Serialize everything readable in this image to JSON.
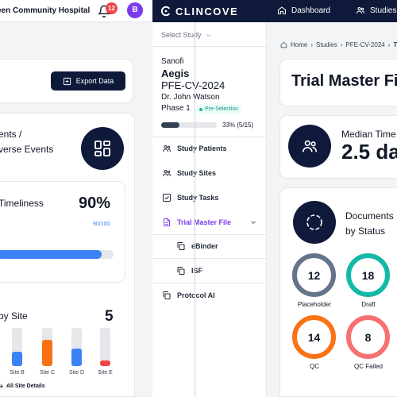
{
  "header": {
    "hospital": "een Community Hospital",
    "notification_count": "12",
    "avatar_initial": "B",
    "brand": "CLINCOVE",
    "nav": [
      "Dashboard",
      "Studies"
    ]
  },
  "left": {
    "export_label": "Export Data",
    "events_line1": "ents /",
    "events_line2": "verse Events",
    "timeliness_label": "Timeliness",
    "timeliness_value": "90%",
    "timeliness_sub": "90/100",
    "timeliness_fraction": 0.9,
    "by_site_label": "by Site",
    "by_site_count": "5",
    "sites": [
      {
        "name": "Site B",
        "fill": 0.38,
        "color": "#3b82f6"
      },
      {
        "name": "Site C",
        "fill": 0.68,
        "color": "#f97316"
      },
      {
        "name": "Site D",
        "fill": 0.45,
        "color": "#3b82f6"
      },
      {
        "name": "Site E",
        "fill": 0.15,
        "color": "#ef4444"
      }
    ],
    "all_site_details": "All Site Details"
  },
  "sidebar": {
    "select_study": "Select Study",
    "sponsor": "Sanofi",
    "study_name": "Aegis",
    "study_code": "PFE-CV-2024",
    "pi": "Dr. John Watson",
    "phase": "Phase 1",
    "phase_badge": "Pre-Selection",
    "progress_text": "33% (5/15)",
    "progress_fraction": 0.33,
    "items": [
      {
        "label": "Study Patients"
      },
      {
        "label": "Study Sites"
      },
      {
        "label": "Study Tasks"
      },
      {
        "label": "Trial Master File"
      },
      {
        "label": "eBinder"
      },
      {
        "label": "ISF"
      },
      {
        "label": "Protocol AI"
      }
    ]
  },
  "right": {
    "breadcrumb": [
      "Home",
      "Studies",
      "PFE-CV-2024",
      "Tr"
    ],
    "page_title": "Trial Master Fil",
    "median_label": "Median Time",
    "median_value": "2.5 da",
    "docs_label_line1": "Documents",
    "docs_label_line2": "by Status",
    "statuses": [
      {
        "label": "Placeholder",
        "value": "12",
        "color": "#64748b"
      },
      {
        "label": "Draft",
        "value": "18",
        "color": "#14b8a6"
      },
      {
        "label": "QC",
        "value": "14",
        "color": "#f97316"
      },
      {
        "label": "QC Failed",
        "value": "8",
        "color": "#f87171"
      }
    ]
  }
}
